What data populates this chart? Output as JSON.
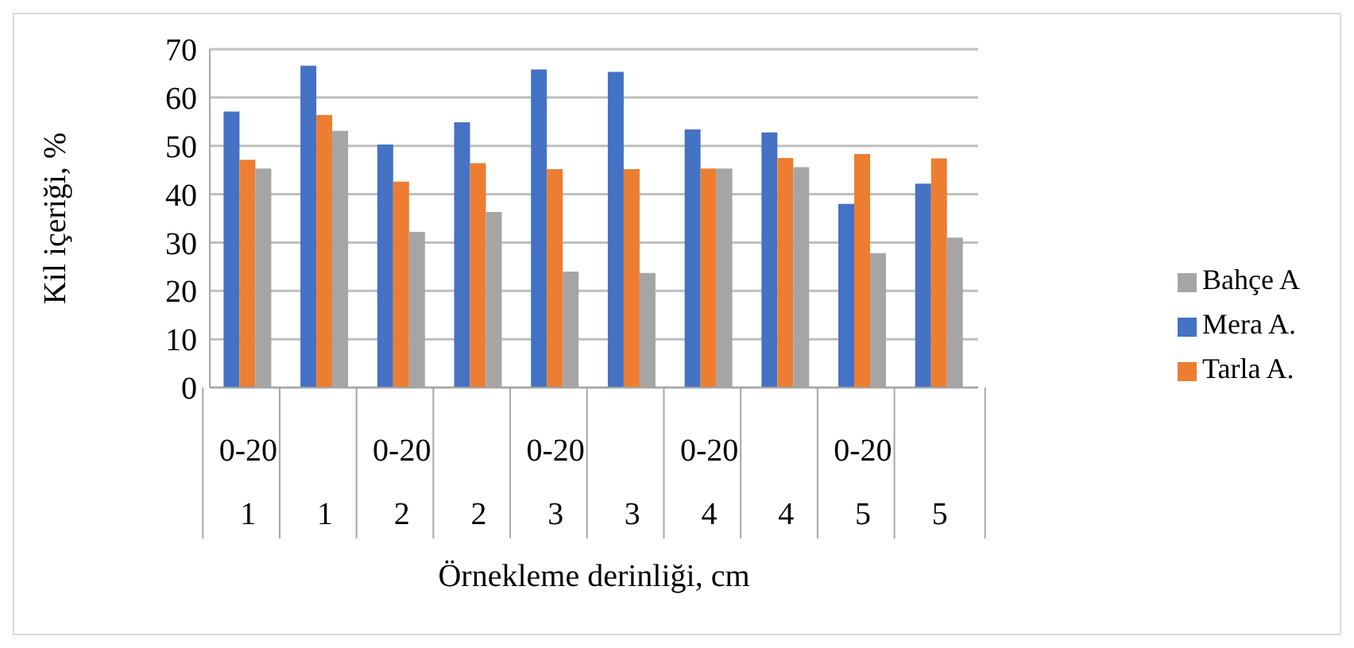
{
  "chart_data": {
    "type": "bar",
    "xlabel": "Örnekleme derinliği, cm",
    "ylabel": "Kil içeriği, %",
    "categories": [
      "0-20\n1",
      "1",
      "0-20\n2",
      "2",
      "0-20\n3",
      "3",
      "0-20\n4",
      "4",
      "0-20\n5",
      "5"
    ],
    "series": [
      {
        "name": "Mera A.",
        "color": "#4472c4",
        "values": [
          57.1,
          66.6,
          50.3,
          54.9,
          65.8,
          65.3,
          53.4,
          52.8,
          38.0,
          42.2
        ]
      },
      {
        "name": "Tarla A.",
        "color": "#ed7d31",
        "values": [
          47.1,
          56.4,
          42.6,
          46.4,
          45.2,
          45.2,
          45.3,
          47.5,
          48.3,
          47.4
        ]
      },
      {
        "name": "Bahçe A",
        "color": "#a5a5a5",
        "values": [
          45.3,
          53.1,
          32.2,
          36.3,
          24.0,
          23.7,
          45.3,
          45.6,
          27.8,
          31.0
        ]
      }
    ],
    "ylim": [
      0,
      70
    ],
    "yticks": [
      0,
      10,
      20,
      30,
      40,
      50,
      60,
      70
    ],
    "grid": "y",
    "legend": "right"
  }
}
